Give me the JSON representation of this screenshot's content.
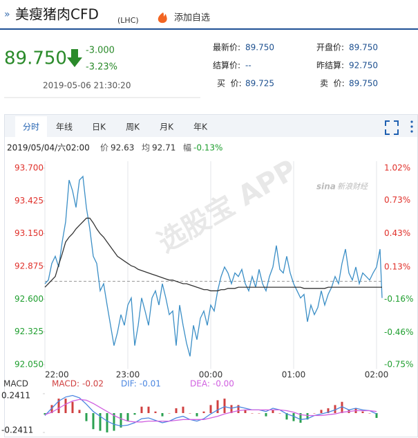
{
  "header": {
    "title": "美瘦猪肉CFD",
    "code": "(LHC)",
    "watch": "添加自选"
  },
  "quote": {
    "price": "89.750",
    "change": "-3.000",
    "percent": "-3.23%",
    "time": "2019-05-06 21:30:20",
    "fields": [
      {
        "label": "最新价:",
        "value": "89.750"
      },
      {
        "label": "结算价:",
        "value": "--"
      },
      {
        "label": "买  价:",
        "value": "89.725"
      },
      {
        "label": "开盘价:",
        "value": "89.750"
      },
      {
        "label": "昨结算:",
        "value": "92.750"
      },
      {
        "label": "卖  价:",
        "value": "89.750"
      }
    ]
  },
  "tabs": [
    "分时",
    "年线",
    "日K",
    "周K",
    "月K",
    "年K"
  ],
  "watermarks": [
    "选股宝 APP",
    "sina",
    "新浪财经"
  ],
  "chart_data": [
    {
      "type": "line",
      "readout": {
        "time": "2019/05/04/六02:00",
        "items": [
          {
            "name": "价",
            "text": "92.63"
          },
          {
            "name": "均",
            "text": "92.71"
          },
          {
            "name": "幅",
            "text": "-0.13%"
          }
        ]
      },
      "x": [
        0,
        2.5,
        5,
        7.5,
        10,
        12.5,
        15,
        17.5,
        20,
        22.5,
        25,
        27.5,
        30,
        32.5,
        35,
        37.5,
        40,
        42.5,
        45,
        47.5,
        50,
        52.5,
        55,
        57.5,
        60,
        62.5,
        65,
        67.5,
        70,
        72.5,
        75,
        77.5,
        80,
        82.5,
        85,
        87.5,
        90,
        92.5,
        95,
        97.5,
        100,
        102.5,
        105,
        107.5,
        110,
        112.5,
        115,
        117.5,
        120,
        122.5,
        125,
        127.5,
        130,
        132.5,
        135,
        137.5,
        140,
        142.5,
        145,
        147.5,
        150,
        152.5,
        155,
        157.5,
        160,
        162.5,
        165,
        167.5,
        170,
        172.5,
        175,
        177.5,
        180,
        182.5,
        185,
        187.5,
        190,
        192.5,
        195,
        197.5,
        200,
        202.5,
        205,
        207.5,
        210,
        212.5,
        215,
        217.5,
        220,
        222.5,
        225,
        227.5,
        230,
        232.5,
        235,
        237.5,
        240,
        242.5,
        244
      ],
      "series": [
        {
          "color": "#3a8ec6",
          "values": [
            92.73,
            92.76,
            92.9,
            92.96,
            92.87,
            93.08,
            93.25,
            93.6,
            93.51,
            93.37,
            93.6,
            93.63,
            93.37,
            93.19,
            92.96,
            92.9,
            92.67,
            92.73,
            92.55,
            92.38,
            92.21,
            92.32,
            92.47,
            92.38,
            92.55,
            92.61,
            92.21,
            92.38,
            92.61,
            92.5,
            92.38,
            92.61,
            92.67,
            92.55,
            92.73,
            92.61,
            92.47,
            92.5,
            92.21,
            92.55,
            92.38,
            92.23,
            92.12,
            92.38,
            92.26,
            92.44,
            92.5,
            92.38,
            92.55,
            92.5,
            92.67,
            92.79,
            92.87,
            92.82,
            92.73,
            92.82,
            92.79,
            92.85,
            92.73,
            92.67,
            92.79,
            92.7,
            92.85,
            92.73,
            92.67,
            92.79,
            92.87,
            93.05,
            92.85,
            92.82,
            92.96,
            92.82,
            92.73,
            92.67,
            92.61,
            92.64,
            92.41,
            92.55,
            92.47,
            92.53,
            92.67,
            92.55,
            92.64,
            92.7,
            92.79,
            92.73,
            92.9,
            93.02,
            92.82,
            92.76,
            92.87,
            92.73,
            92.82,
            92.79,
            92.76,
            92.82,
            92.87,
            93.02,
            92.61
          ]
        },
        {
          "color": "#333333",
          "values": [
            92.7,
            92.73,
            92.76,
            92.79,
            92.89,
            92.98,
            93.08,
            93.12,
            93.15,
            93.19,
            93.22,
            93.25,
            93.28,
            93.28,
            93.24,
            93.19,
            93.15,
            93.12,
            93.08,
            93.04,
            93.0,
            92.96,
            92.94,
            92.92,
            92.9,
            92.88,
            92.87,
            92.85,
            92.84,
            92.83,
            92.82,
            92.81,
            92.8,
            92.79,
            92.78,
            92.77,
            92.76,
            92.76,
            92.75,
            92.74,
            92.73,
            92.73,
            92.72,
            92.71,
            92.7,
            92.69,
            92.68,
            92.68,
            92.67,
            92.67,
            92.67,
            92.68,
            92.68,
            92.69,
            92.69,
            92.69,
            92.7,
            92.7,
            92.7,
            92.7,
            92.7,
            92.7,
            92.7,
            92.7,
            92.7,
            92.7,
            92.7,
            92.7,
            92.7,
            92.7,
            92.7,
            92.7,
            92.7,
            92.7,
            92.7,
            92.69,
            92.69,
            92.69,
            92.69,
            92.69,
            92.69,
            92.69,
            92.7,
            92.7,
            92.7,
            92.7,
            92.7,
            92.7,
            92.7,
            92.7,
            92.7,
            92.7,
            92.7,
            92.7,
            92.7,
            92.7,
            92.7,
            92.7,
            92.7
          ]
        }
      ],
      "xlim": [
        0,
        244
      ],
      "xticks": [
        {
          "value": 0,
          "label": "22:00"
        },
        {
          "value": 60,
          "label": "23:00"
        },
        {
          "value": 120,
          "label": "00:00"
        },
        {
          "value": 180,
          "label": "01:00"
        },
        {
          "value": 240,
          "label": "02:00"
        }
      ],
      "ylim": [
        92.05,
        93.7
      ],
      "yticks": [
        {
          "value": 92.05,
          "label": "92.050"
        },
        {
          "value": 92.325,
          "label": "92.325"
        },
        {
          "value": 92.6,
          "label": "92.600"
        },
        {
          "value": 92.875,
          "label": "92.875"
        },
        {
          "value": 93.15,
          "label": "93.150"
        },
        {
          "value": 93.425,
          "label": "93.425"
        },
        {
          "value": 93.7,
          "label": "93.700"
        }
      ],
      "y2lim": [
        -0.75,
        1.02
      ],
      "y2ticks": [
        {
          "value": -0.75,
          "label": "-0.75%"
        },
        {
          "value": -0.46,
          "label": "-0.46%"
        },
        {
          "value": -0.16,
          "label": "-0.16%"
        },
        {
          "value": 0.13,
          "label": "0.13%"
        },
        {
          "value": 0.43,
          "label": "0.43%"
        },
        {
          "value": 0.73,
          "label": "0.73%"
        },
        {
          "value": 1.02,
          "label": "1.02%"
        }
      ],
      "ref_value": 92.75,
      "grid": true,
      "up_color": "#e0302a",
      "down_color": "#1e9e2e"
    },
    {
      "type": "line",
      "title": "MACD",
      "x": [
        0,
        5,
        10,
        15,
        20,
        25,
        30,
        35,
        40,
        45,
        50,
        55,
        60,
        65,
        70,
        75,
        80,
        85,
        90,
        95,
        100,
        105,
        110,
        115,
        120,
        125,
        130,
        135,
        140,
        145,
        150,
        155,
        160,
        165,
        170,
        175,
        180,
        185,
        190,
        195,
        200,
        205,
        210,
        215,
        220,
        225,
        230,
        235,
        240
      ],
      "series": [
        {
          "name": "MACD:",
          "readout": "-0.02",
          "mark": "bar",
          "color": "#d04040",
          "values": [
            -0.02,
            0.1,
            0.18,
            0.18,
            0.14,
            0.04,
            -0.1,
            -0.2,
            -0.22,
            -0.24,
            -0.22,
            -0.18,
            -0.1,
            -0.02,
            0.08,
            0.08,
            0.02,
            -0.04,
            0.0,
            0.06,
            0.08,
            0.0,
            -0.04,
            0.02,
            0.1,
            0.16,
            0.18,
            0.1,
            0.1,
            0.04,
            0.0,
            0.0,
            -0.04,
            0.04,
            0.0,
            -0.08,
            -0.1,
            -0.12,
            -0.08,
            0.0,
            0.04,
            0.06,
            0.1,
            0.14,
            0.04,
            0.06,
            0.02,
            0.0,
            -0.06
          ]
        },
        {
          "name": "DIF:",
          "readout": "-0.01",
          "mark": "line",
          "color": "#4a86e0",
          "values": [
            -0.03,
            0.06,
            0.15,
            0.2,
            0.22,
            0.19,
            0.11,
            0.02,
            -0.04,
            -0.1,
            -0.14,
            -0.16,
            -0.15,
            -0.12,
            -0.07,
            -0.06,
            -0.09,
            -0.12,
            -0.1,
            -0.06,
            -0.04,
            -0.08,
            -0.1,
            -0.07,
            -0.01,
            0.04,
            0.08,
            0.06,
            0.08,
            0.06,
            0.04,
            0.04,
            0.02,
            0.06,
            0.04,
            -0.01,
            -0.04,
            -0.08,
            -0.07,
            -0.03,
            -0.01,
            0.01,
            0.04,
            0.08,
            0.04,
            0.06,
            0.04,
            0.03,
            -0.01
          ]
        },
        {
          "name": "DEA:",
          "readout": "-0.00",
          "mark": "line",
          "color": "#d060e0",
          "values": [
            -0.02,
            0.01,
            0.06,
            0.11,
            0.15,
            0.17,
            0.16,
            0.12,
            0.07,
            0.02,
            -0.03,
            -0.07,
            -0.1,
            -0.11,
            -0.11,
            -0.1,
            -0.1,
            -0.1,
            -0.1,
            -0.09,
            -0.08,
            -0.08,
            -0.08,
            -0.08,
            -0.06,
            -0.04,
            -0.01,
            0.01,
            0.03,
            0.04,
            0.04,
            0.04,
            0.04,
            0.04,
            0.04,
            0.03,
            0.01,
            -0.02,
            -0.03,
            -0.03,
            -0.03,
            -0.02,
            -0.01,
            0.01,
            0.02,
            0.03,
            0.03,
            0.03,
            0.02
          ]
        }
      ],
      "xlim": [
        0,
        244
      ],
      "ylim": [
        -0.2411,
        0.2411
      ],
      "yticks": [
        -0.2411,
        0.2411
      ],
      "up_color": "#d04040",
      "down_color": "#2aa050"
    }
  ]
}
